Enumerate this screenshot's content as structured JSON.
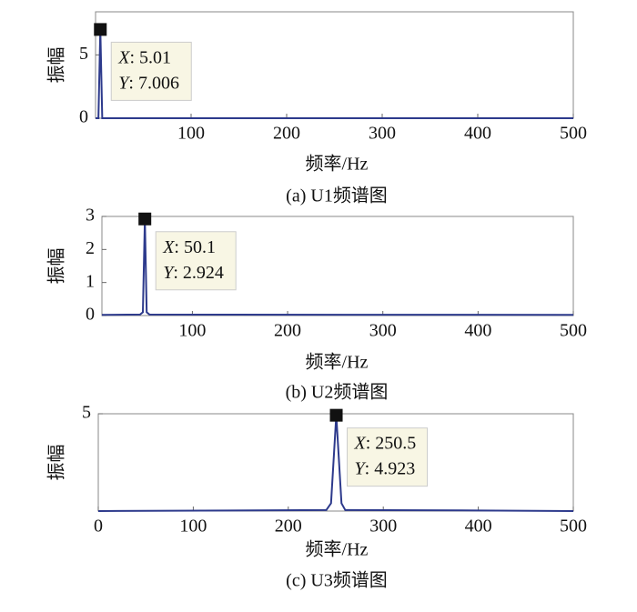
{
  "chart_data": [
    {
      "type": "line",
      "caption": "(a) U1频谱图",
      "xlabel": "频率/Hz",
      "ylabel": "振幅",
      "xlim": [
        0,
        500
      ],
      "xticks": [
        100,
        200,
        300,
        400,
        500
      ],
      "ylim": [
        0,
        8.4
      ],
      "yticks": [
        0,
        5
      ],
      "series": [
        {
          "color": "#2d3a8c",
          "x": [
            0,
            3,
            5.01,
            7,
            500
          ],
          "values": [
            0,
            0,
            7.006,
            0,
            0
          ]
        }
      ],
      "datatip": {
        "x": 5.01,
        "y": 7.006,
        "x_name": "X",
        "y_name": "Y",
        "separator": ": "
      }
    },
    {
      "type": "line",
      "caption": "(b) U2频谱图",
      "xlabel": "频率/Hz",
      "ylabel": "振幅",
      "xlim": [
        5,
        500
      ],
      "xticks": [
        100,
        200,
        300,
        400,
        500
      ],
      "ylim": [
        0,
        3
      ],
      "yticks": [
        0,
        1,
        2,
        3
      ],
      "series": [
        {
          "color": "#2d3a8c",
          "x": [
            5,
            45,
            48,
            50.1,
            52,
            55,
            500
          ],
          "values": [
            0.02,
            0.03,
            0.1,
            2.924,
            0.1,
            0.03,
            0.02
          ]
        }
      ],
      "datatip": {
        "x": 50.1,
        "y": 2.924,
        "x_name": "X",
        "y_name": "Y",
        "separator": ": "
      }
    },
    {
      "type": "line",
      "caption": "(c) U3频谱图",
      "xlabel": "频率/Hz",
      "ylabel": "振幅",
      "xlim": [
        0,
        500
      ],
      "xticks": [
        0,
        100,
        200,
        300,
        400,
        500
      ],
      "ylim": [
        0,
        5
      ],
      "yticks": [
        5
      ],
      "series": [
        {
          "color": "#2d3a8c",
          "x": [
            0,
            240,
            245,
            250.5,
            256,
            260,
            400,
            500
          ],
          "values": [
            0,
            0.05,
            0.4,
            4.923,
            0.4,
            0.05,
            0.03,
            0
          ]
        }
      ],
      "datatip": {
        "x": 250.5,
        "y": 4.923,
        "x_name": "X",
        "y_name": "Y",
        "separator": ": "
      }
    }
  ]
}
